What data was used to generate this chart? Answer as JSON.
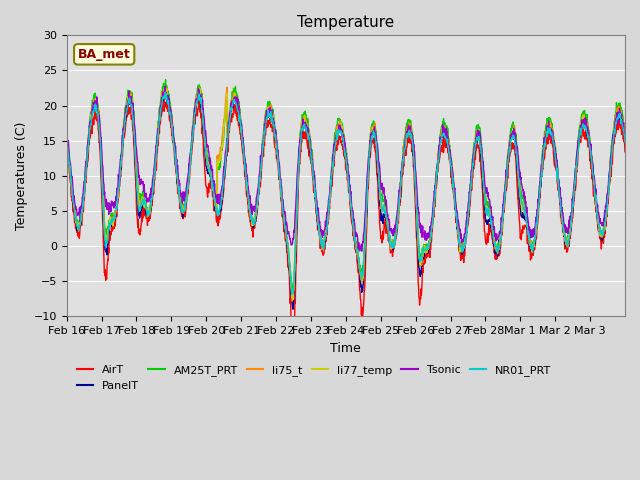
{
  "title": "Temperature",
  "xlabel": "Time",
  "ylabel": "Temperatures (C)",
  "annotation": "BA_met",
  "ylim": [
    -10,
    30
  ],
  "series_colors": {
    "AirT": "#ff0000",
    "PanelT": "#000099",
    "AM25T_PRT": "#00cc00",
    "li75_t": "#ff8800",
    "li77_temp": "#cccc00",
    "Tsonic": "#9900cc",
    "NR01_PRT": "#00cccc"
  },
  "x_tick_labels": [
    "Feb 16",
    "Feb 17",
    "Feb 18",
    "Feb 19",
    "Feb 20",
    "Feb 21",
    "Feb 22",
    "Feb 23",
    "Feb 24",
    "Feb 25",
    "Feb 26",
    "Feb 27",
    "Feb 28",
    "Mar 1",
    "Mar 2",
    "Mar 3"
  ],
  "plot_bg_color": "#e0e0e0",
  "grid_color": "#ffffff",
  "n_points": 1632
}
